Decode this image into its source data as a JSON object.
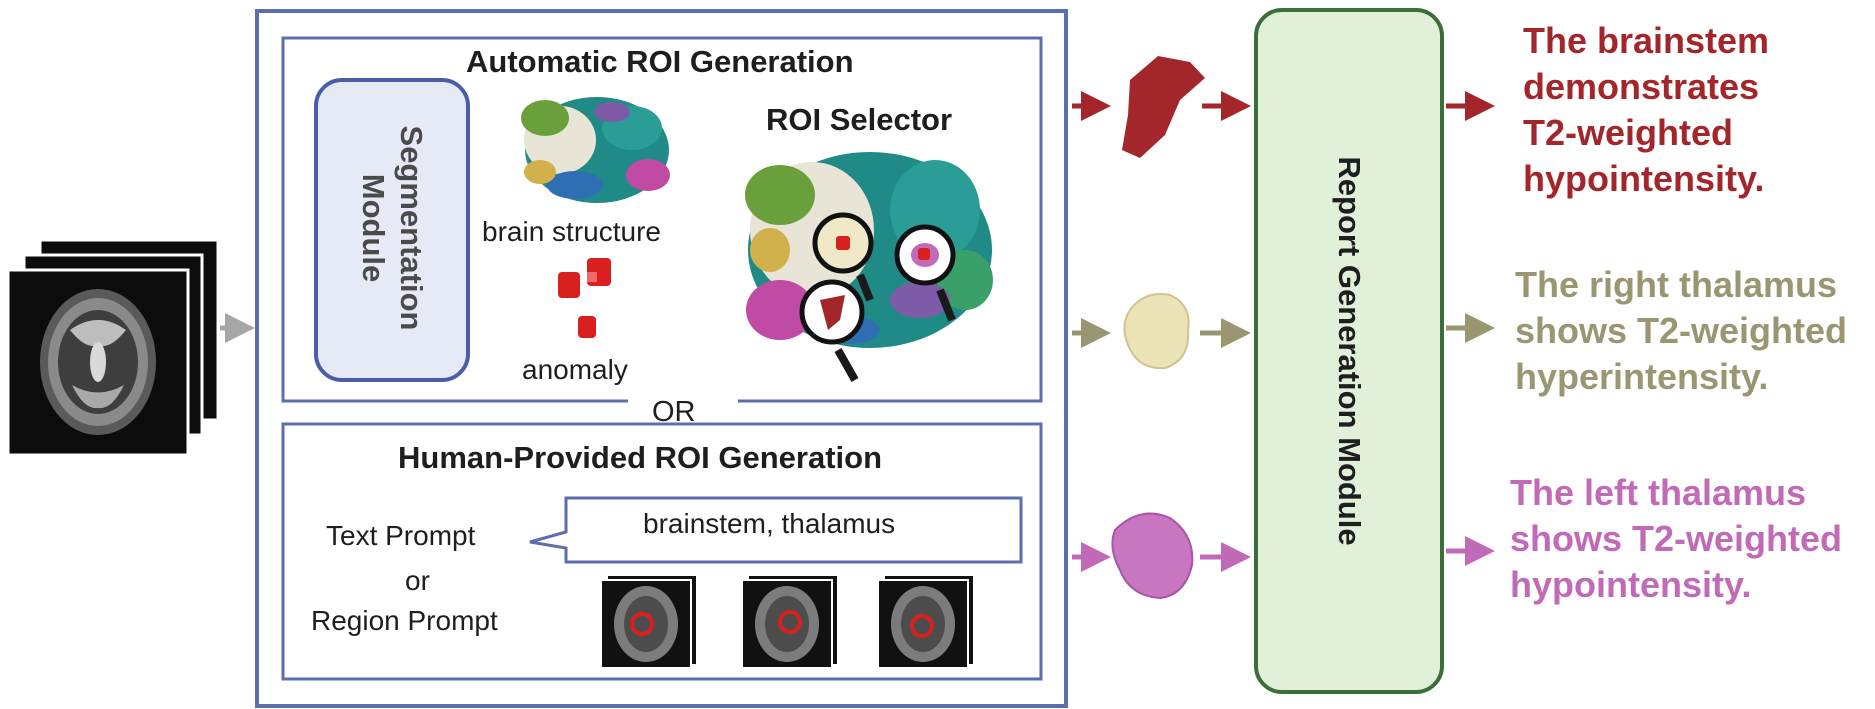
{
  "auto_roi": {
    "title": "Automatic ROI Generation",
    "segmentation_module": "Segmentation Module",
    "brain_structure_label": "brain structure",
    "anomaly_label": "anomaly",
    "roi_selector": "ROI Selector"
  },
  "or_label": "OR",
  "human_roi": {
    "title": "Human-Provided ROI Generation",
    "text_prompt": "Text Prompt",
    "or": "or",
    "region_prompt": "Region Prompt",
    "prompt_value": "brainstem, thalamus"
  },
  "report_module": "Report Generation Module",
  "outputs": [
    {
      "lines": [
        "The brainstem",
        "demonstrates",
        "T2-weighted",
        "hypointensity."
      ],
      "color": "#a3262b"
    },
    {
      "lines": [
        "The right thalamus",
        "shows T2-weighted",
        "hyperintensity."
      ],
      "color": "#9b9672"
    },
    {
      "lines": [
        "The left thalamus",
        "shows T2-weighted",
        "hypointensity."
      ],
      "color": "#c06ab8"
    }
  ],
  "colors": {
    "panel_border": "#5b6fae",
    "report_fill": "#e1f0d9",
    "report_border": "#3c6e3a",
    "brainstem": "#a3262b",
    "right_thalamus": "#9b9672",
    "left_thalamus": "#c06ab8"
  }
}
